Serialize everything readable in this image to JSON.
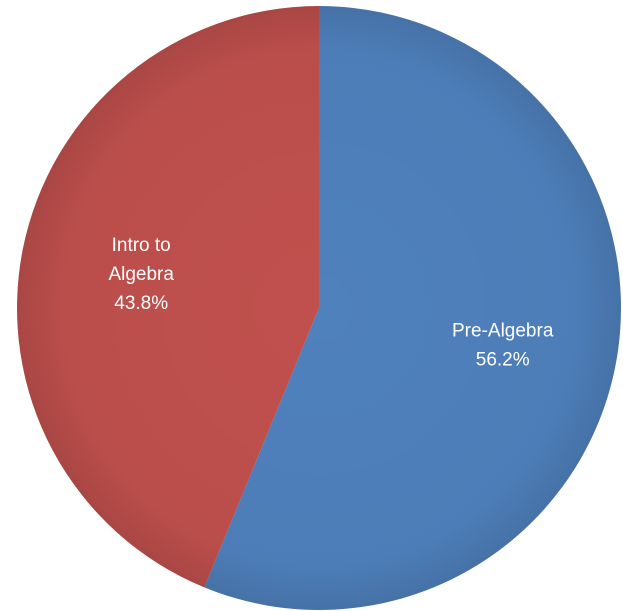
{
  "chart_data": {
    "type": "pie",
    "title": "",
    "slices": [
      {
        "label": "Pre-Algebra",
        "label_lines": [
          "Pre-Algebra"
        ],
        "value": 56.2,
        "value_text": "56.2%",
        "color": "#4f81bd"
      },
      {
        "label": "Intro to Algebra",
        "label_lines": [
          "Intro to",
          "Algebra"
        ],
        "value": 43.8,
        "value_text": "43.8%",
        "color": "#c0504d"
      }
    ],
    "start_angle_deg": 0,
    "direction": "clockwise",
    "legend": "none"
  }
}
